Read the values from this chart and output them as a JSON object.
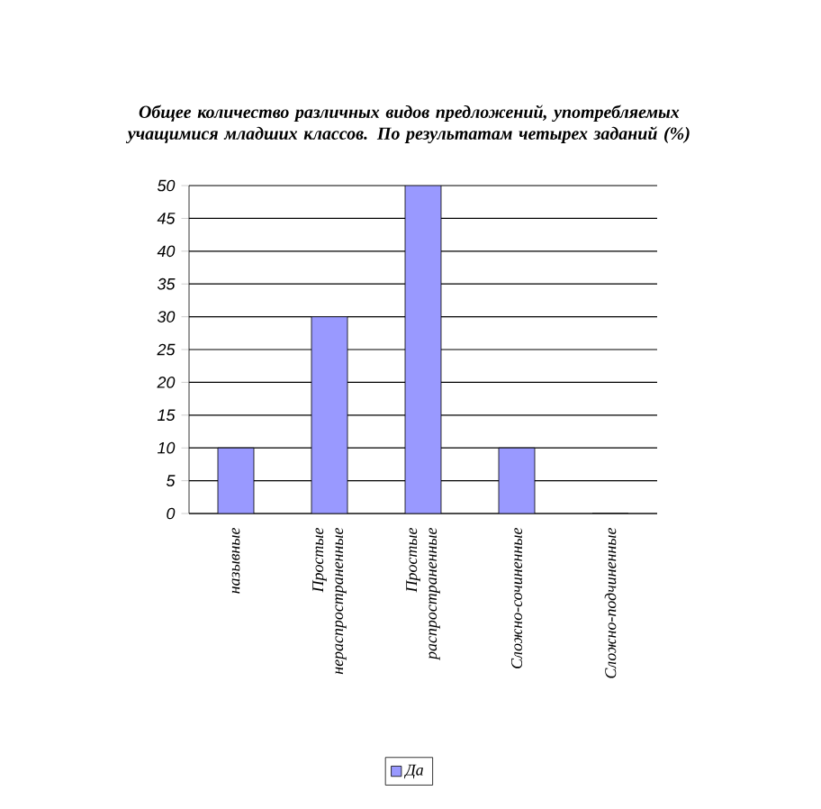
{
  "chart_data": {
    "type": "bar",
    "title": "Общее количество различных видов предложений, употребляемых учащимися младших классов. По результатам четырех заданий (%)",
    "categories": [
      "назывные",
      "Простые нераспространенные",
      "Простые распространенные",
      "Сложно-сочиненные",
      "Сложно-подчиненные"
    ],
    "series": [
      {
        "name": "Да",
        "color": "#9999ff",
        "values": [
          10,
          30,
          50,
          10,
          0
        ]
      }
    ],
    "ylim": [
      0,
      50
    ],
    "yticks": [
      0,
      5,
      10,
      15,
      20,
      25,
      30,
      35,
      40,
      45,
      50
    ],
    "grid": "y",
    "legend": "bottom"
  }
}
